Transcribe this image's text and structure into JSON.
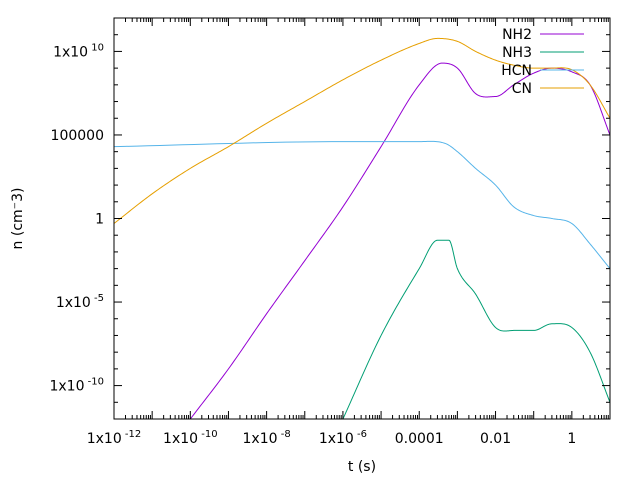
{
  "chart_data": {
    "type": "line",
    "title": "",
    "xlabel": "t (s)",
    "ylabel": "n (cm⁻3)",
    "x_scale": "log",
    "y_scale": "log",
    "xlim": [
      1e-12,
      10
    ],
    "ylim": [
      1e-12,
      1000000000000.0
    ],
    "grid": false,
    "legend_position": "top-right",
    "x_ticks": [
      {
        "value": 1e-12,
        "mant": "1x10",
        "exp": "-12"
      },
      {
        "value": 1e-10,
        "mant": "1x10",
        "exp": "-10"
      },
      {
        "value": 1e-08,
        "mant": "1x10",
        "exp": "-8"
      },
      {
        "value": 1e-06,
        "mant": "1x10",
        "exp": "-6"
      },
      {
        "value": 0.0001,
        "mant": "0.0001",
        "exp": ""
      },
      {
        "value": 0.01,
        "mant": "0.01",
        "exp": ""
      },
      {
        "value": 1,
        "mant": "1",
        "exp": ""
      }
    ],
    "y_ticks": [
      {
        "value": 10000000000.0,
        "mant": "1x10",
        "exp": "10"
      },
      {
        "value": 100000.0,
        "mant": "100000",
        "exp": ""
      },
      {
        "value": 1,
        "mant": "1",
        "exp": ""
      },
      {
        "value": 1e-05,
        "mant": "1x10",
        "exp": "-5"
      },
      {
        "value": 1e-10,
        "mant": "1x10",
        "exp": "-10"
      }
    ],
    "series": [
      {
        "name": "NH2",
        "color": "#9400d3",
        "points": [
          [
            1e-10,
            1e-12
          ],
          [
            1e-09,
            1e-09
          ],
          [
            1e-08,
            2e-06
          ],
          [
            1e-07,
            0.003
          ],
          [
            1e-06,
            5
          ],
          [
            1e-05,
            20000.0
          ],
          [
            0.0001,
            100000000.0
          ],
          [
            0.0004,
            2000000000.0
          ],
          [
            0.001,
            1000000000.0
          ],
          [
            0.003,
            30000000.0
          ],
          [
            0.01,
            20000000.0
          ],
          [
            0.03,
            100000000.0
          ],
          [
            0.1,
            500000000.0
          ],
          [
            0.3,
            1000000000.0
          ],
          [
            1,
            600000000.0
          ],
          [
            3,
            100000000.0
          ],
          [
            10,
            100000.0
          ]
        ]
      },
      {
        "name": "NH3",
        "color": "#009e73",
        "points": [
          [
            1e-06,
            1e-12
          ],
          [
            1e-05,
            1e-07
          ],
          [
            0.0001,
            0.001
          ],
          [
            0.0003,
            0.05
          ],
          [
            0.0006,
            0.05
          ],
          [
            0.001,
            0.001
          ],
          [
            0.003,
            3e-05
          ],
          [
            0.01,
            3e-07
          ],
          [
            0.03,
            2e-07
          ],
          [
            0.1,
            2e-07
          ],
          [
            0.3,
            5e-07
          ],
          [
            1,
            3e-07
          ],
          [
            3,
            1e-08
          ],
          [
            10,
            1e-11
          ]
        ]
      },
      {
        "name": "HCN",
        "color": "#56b4e9",
        "points": [
          [
            1e-12,
            20000.0
          ],
          [
            1e-06,
            40000.0
          ],
          [
            0.0001,
            40000.0
          ],
          [
            0.0005,
            30000.0
          ],
          [
            0.001,
            10000.0
          ],
          [
            0.003,
            1000.0
          ],
          [
            0.01,
            100.0
          ],
          [
            0.03,
            5
          ],
          [
            0.1,
            1.5
          ],
          [
            0.3,
            1
          ],
          [
            1,
            0.5
          ],
          [
            3,
            0.03
          ],
          [
            10,
            0.001
          ]
        ]
      },
      {
        "name": "CN",
        "color": "#e69f00",
        "points": [
          [
            1e-12,
            0.5
          ],
          [
            1e-11,
            30.0
          ],
          [
            1e-10,
            1000.0
          ],
          [
            1e-09,
            20000.0
          ],
          [
            1e-08,
            500000.0
          ],
          [
            1e-07,
            10000000.0
          ],
          [
            1e-06,
            200000000.0
          ],
          [
            1e-05,
            3000000000.0
          ],
          [
            0.0001,
            30000000000.0
          ],
          [
            0.0003,
            60000000000.0
          ],
          [
            0.001,
            40000000000.0
          ],
          [
            0.003,
            10000000000.0
          ],
          [
            0.01,
            3000000000.0
          ],
          [
            0.03,
            1500000000.0
          ],
          [
            0.1,
            1000000000.0
          ],
          [
            0.3,
            1000000000.0
          ],
          [
            1,
            800000000.0
          ],
          [
            3,
            100000000.0
          ],
          [
            10,
            1000000.0
          ]
        ]
      }
    ]
  }
}
